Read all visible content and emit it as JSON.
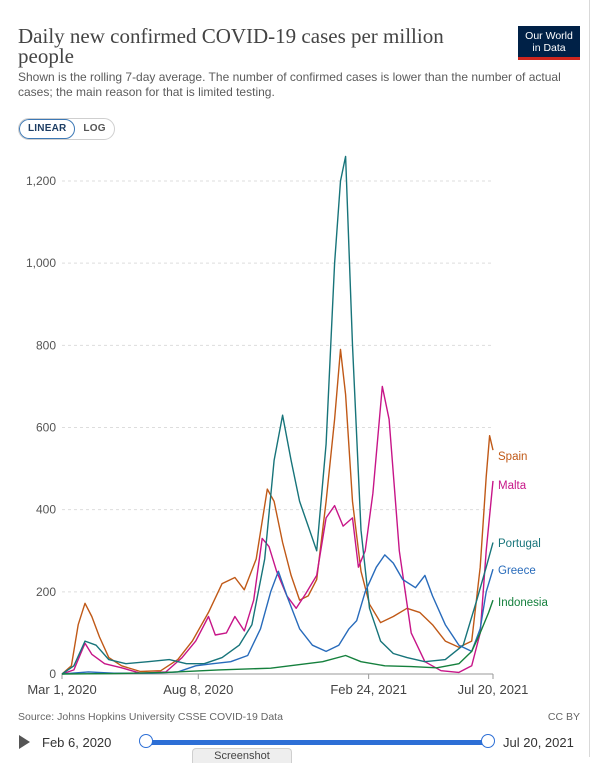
{
  "header": {
    "title": "Daily new confirmed COVID-19 cases per million people",
    "subtitle": "Shown is the rolling 7-day average. The number of confirmed cases is lower than the number of actual cases; the main reason for that is limited testing.",
    "logo_line1": "Our World",
    "logo_line2": "in Data"
  },
  "toggle": {
    "linear": "LINEAR",
    "log": "LOG",
    "selected": "LINEAR"
  },
  "footer": {
    "source": "Source: Johns Hopkins University CSSE COVID-19 Data",
    "license": "CC BY"
  },
  "timeline": {
    "start_label": "Feb 6, 2020",
    "end_label": "Jul 20, 2021",
    "screenshot_label": "Screenshot"
  },
  "chart_data": {
    "type": "line",
    "yticks": [
      0,
      200,
      400,
      600,
      800,
      1000,
      1200
    ],
    "ytick_labels": [
      "0",
      "200",
      "400",
      "600",
      "800",
      "1,000",
      "1,200"
    ],
    "ylim": [
      0,
      1260
    ],
    "xlim": [
      "2020-03-01",
      "2021-07-20"
    ],
    "xticks": [
      "2020-03-01",
      "2020-08-08",
      "2021-02-24",
      "2021-07-20"
    ],
    "xtick_labels": [
      "Mar 1, 2020",
      "Aug 8, 2020",
      "Feb 24, 2021",
      "Jul 20, 2021"
    ],
    "grid": true,
    "legend": "right-end-labels",
    "series": [
      {
        "name": "Spain",
        "color": "#c05917",
        "points": [
          [
            "2020-03-01",
            0
          ],
          [
            "2020-03-12",
            20
          ],
          [
            "2020-03-20",
            120
          ],
          [
            "2020-03-28",
            172
          ],
          [
            "2020-04-05",
            140
          ],
          [
            "2020-04-14",
            90
          ],
          [
            "2020-04-25",
            40
          ],
          [
            "2020-05-10",
            20
          ],
          [
            "2020-06-01",
            6
          ],
          [
            "2020-06-25",
            8
          ],
          [
            "2020-07-15",
            35
          ],
          [
            "2020-08-01",
            80
          ],
          [
            "2020-08-20",
            150
          ],
          [
            "2020-09-05",
            220
          ],
          [
            "2020-09-20",
            235
          ],
          [
            "2020-10-01",
            205
          ],
          [
            "2020-10-15",
            280
          ],
          [
            "2020-10-28",
            450
          ],
          [
            "2020-11-05",
            420
          ],
          [
            "2020-11-15",
            320
          ],
          [
            "2020-11-25",
            240
          ],
          [
            "2020-12-05",
            180
          ],
          [
            "2020-12-15",
            190
          ],
          [
            "2020-12-25",
            230
          ],
          [
            "2021-01-05",
            420
          ],
          [
            "2021-01-15",
            620
          ],
          [
            "2021-01-22",
            790
          ],
          [
            "2021-01-28",
            680
          ],
          [
            "2021-02-05",
            420
          ],
          [
            "2021-02-15",
            250
          ],
          [
            "2021-02-25",
            170
          ],
          [
            "2021-03-10",
            125
          ],
          [
            "2021-03-25",
            140
          ],
          [
            "2021-04-10",
            160
          ],
          [
            "2021-04-25",
            150
          ],
          [
            "2021-05-10",
            120
          ],
          [
            "2021-05-25",
            80
          ],
          [
            "2021-06-10",
            65
          ],
          [
            "2021-06-25",
            80
          ],
          [
            "2021-07-05",
            260
          ],
          [
            "2021-07-12",
            480
          ],
          [
            "2021-07-16",
            580
          ],
          [
            "2021-07-20",
            545
          ]
        ]
      },
      {
        "name": "Malta",
        "color": "#c71588",
        "points": [
          [
            "2020-03-01",
            0
          ],
          [
            "2020-03-15",
            10
          ],
          [
            "2020-03-28",
            75
          ],
          [
            "2020-04-05",
            48
          ],
          [
            "2020-04-20",
            25
          ],
          [
            "2020-05-10",
            15
          ],
          [
            "2020-06-01",
            2
          ],
          [
            "2020-07-01",
            5
          ],
          [
            "2020-07-20",
            40
          ],
          [
            "2020-08-05",
            80
          ],
          [
            "2020-08-20",
            140
          ],
          [
            "2020-08-28",
            95
          ],
          [
            "2020-09-10",
            100
          ],
          [
            "2020-09-20",
            140
          ],
          [
            "2020-10-01",
            105
          ],
          [
            "2020-10-12",
            180
          ],
          [
            "2020-10-22",
            330
          ],
          [
            "2020-10-30",
            310
          ],
          [
            "2020-11-08",
            250
          ],
          [
            "2020-11-20",
            190
          ],
          [
            "2020-12-01",
            160
          ],
          [
            "2020-12-12",
            195
          ],
          [
            "2020-12-25",
            240
          ],
          [
            "2021-01-05",
            380
          ],
          [
            "2021-01-15",
            410
          ],
          [
            "2021-01-25",
            360
          ],
          [
            "2021-02-05",
            380
          ],
          [
            "2021-02-12",
            260
          ],
          [
            "2021-02-20",
            300
          ],
          [
            "2021-03-01",
            440
          ],
          [
            "2021-03-12",
            700
          ],
          [
            "2021-03-20",
            620
          ],
          [
            "2021-04-01",
            300
          ],
          [
            "2021-04-15",
            100
          ],
          [
            "2021-05-01",
            30
          ],
          [
            "2021-05-20",
            8
          ],
          [
            "2021-06-10",
            4
          ],
          [
            "2021-06-25",
            20
          ],
          [
            "2021-07-05",
            100
          ],
          [
            "2021-07-12",
            300
          ],
          [
            "2021-07-20",
            470
          ]
        ]
      },
      {
        "name": "Portugal",
        "color": "#17747a",
        "points": [
          [
            "2020-03-01",
            0
          ],
          [
            "2020-03-15",
            20
          ],
          [
            "2020-03-28",
            80
          ],
          [
            "2020-04-10",
            70
          ],
          [
            "2020-04-25",
            35
          ],
          [
            "2020-05-15",
            25
          ],
          [
            "2020-06-10",
            30
          ],
          [
            "2020-07-05",
            35
          ],
          [
            "2020-07-25",
            25
          ],
          [
            "2020-08-15",
            25
          ],
          [
            "2020-09-05",
            40
          ],
          [
            "2020-09-25",
            70
          ],
          [
            "2020-10-10",
            120
          ],
          [
            "2020-10-25",
            280
          ],
          [
            "2020-11-05",
            520
          ],
          [
            "2020-11-15",
            630
          ],
          [
            "2020-11-25",
            520
          ],
          [
            "2020-12-05",
            420
          ],
          [
            "2020-12-15",
            360
          ],
          [
            "2020-12-25",
            300
          ],
          [
            "2021-01-05",
            560
          ],
          [
            "2021-01-15",
            1000
          ],
          [
            "2021-01-22",
            1200
          ],
          [
            "2021-01-28",
            1260
          ],
          [
            "2021-02-05",
            800
          ],
          [
            "2021-02-15",
            350
          ],
          [
            "2021-02-25",
            160
          ],
          [
            "2021-03-10",
            80
          ],
          [
            "2021-03-25",
            50
          ],
          [
            "2021-04-10",
            40
          ],
          [
            "2021-05-01",
            30
          ],
          [
            "2021-05-25",
            35
          ],
          [
            "2021-06-15",
            70
          ],
          [
            "2021-07-01",
            180
          ],
          [
            "2021-07-12",
            260
          ],
          [
            "2021-07-20",
            320
          ]
        ]
      },
      {
        "name": "Greece",
        "color": "#286bbb",
        "points": [
          [
            "2020-03-01",
            0
          ],
          [
            "2020-04-01",
            5
          ],
          [
            "2020-05-01",
            2
          ],
          [
            "2020-06-15",
            2
          ],
          [
            "2020-07-15",
            5
          ],
          [
            "2020-08-05",
            20
          ],
          [
            "2020-08-25",
            25
          ],
          [
            "2020-09-15",
            30
          ],
          [
            "2020-10-05",
            45
          ],
          [
            "2020-10-20",
            110
          ],
          [
            "2020-11-01",
            200
          ],
          [
            "2020-11-10",
            250
          ],
          [
            "2020-11-20",
            190
          ],
          [
            "2020-12-05",
            110
          ],
          [
            "2020-12-20",
            70
          ],
          [
            "2021-01-05",
            55
          ],
          [
            "2021-01-20",
            70
          ],
          [
            "2021-02-01",
            110
          ],
          [
            "2021-02-10",
            130
          ],
          [
            "2021-02-20",
            200
          ],
          [
            "2021-03-05",
            260
          ],
          [
            "2021-03-15",
            290
          ],
          [
            "2021-03-25",
            270
          ],
          [
            "2021-04-05",
            230
          ],
          [
            "2021-04-20",
            210
          ],
          [
            "2021-05-01",
            240
          ],
          [
            "2021-05-10",
            190
          ],
          [
            "2021-05-25",
            120
          ],
          [
            "2021-06-10",
            70
          ],
          [
            "2021-06-25",
            55
          ],
          [
            "2021-07-05",
            110
          ],
          [
            "2021-07-12",
            200
          ],
          [
            "2021-07-20",
            255
          ]
        ]
      },
      {
        "name": "Indonesia",
        "color": "#15803d",
        "points": [
          [
            "2020-03-01",
            0
          ],
          [
            "2020-05-01",
            1
          ],
          [
            "2020-07-01",
            4
          ],
          [
            "2020-09-01",
            10
          ],
          [
            "2020-11-01",
            14
          ],
          [
            "2021-01-01",
            30
          ],
          [
            "2021-01-28",
            45
          ],
          [
            "2021-02-15",
            30
          ],
          [
            "2021-03-15",
            20
          ],
          [
            "2021-04-15",
            18
          ],
          [
            "2021-05-15",
            15
          ],
          [
            "2021-06-10",
            25
          ],
          [
            "2021-06-25",
            55
          ],
          [
            "2021-07-05",
            100
          ],
          [
            "2021-07-15",
            150
          ],
          [
            "2021-07-20",
            180
          ]
        ]
      }
    ]
  }
}
